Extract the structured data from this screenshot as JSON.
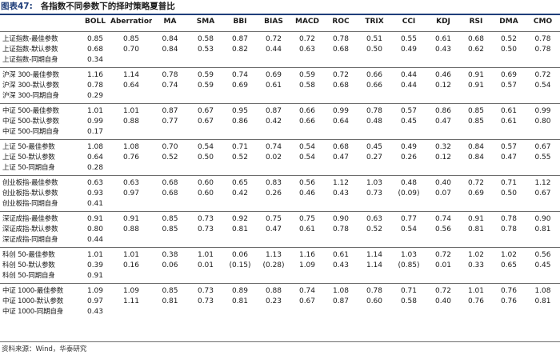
{
  "figure": {
    "label": "图表47:",
    "title": "各指数不同参数下的择时策略夏普比"
  },
  "table": {
    "columns": [
      "",
      "BOLL",
      "Aberration",
      "MA",
      "SMA",
      "BBI",
      "BIAS",
      "MACD",
      "ROC",
      "TRIX",
      "CCI",
      "KDJ",
      "RSI",
      "DMA",
      "CMO"
    ],
    "groups": [
      {
        "rows": [
          {
            "label": "上证指数-最佳参数",
            "values": [
              "0.85",
              "0.85",
              "0.84",
              "0.58",
              "0.87",
              "0.72",
              "0.72",
              "0.78",
              "0.51",
              "0.55",
              "0.61",
              "0.68",
              "0.52",
              "0.78"
            ]
          },
          {
            "label": "上证指数-默认参数",
            "values": [
              "0.68",
              "0.70",
              "0.84",
              "0.53",
              "0.82",
              "0.44",
              "0.63",
              "0.68",
              "0.50",
              "0.49",
              "0.43",
              "0.62",
              "0.50",
              "0.78"
            ]
          },
          {
            "label": "上证指数-同期自身",
            "values": [
              "0.34",
              "",
              "",
              "",
              "",
              "",
              "",
              "",
              "",
              "",
              "",
              "",
              "",
              ""
            ]
          }
        ]
      },
      {
        "rows": [
          {
            "label": "沪深 300-最佳参数",
            "values": [
              "1.16",
              "1.14",
              "0.78",
              "0.59",
              "0.74",
              "0.69",
              "0.59",
              "0.72",
              "0.66",
              "0.44",
              "0.46",
              "0.91",
              "0.69",
              "0.72"
            ]
          },
          {
            "label": "沪深 300-默认参数",
            "values": [
              "0.78",
              "0.64",
              "0.74",
              "0.59",
              "0.69",
              "0.61",
              "0.58",
              "0.68",
              "0.66",
              "0.44",
              "0.12",
              "0.91",
              "0.57",
              "0.54"
            ]
          },
          {
            "label": "沪深 300-同期自身",
            "values": [
              "0.29",
              "",
              "",
              "",
              "",
              "",
              "",
              "",
              "",
              "",
              "",
              "",
              "",
              ""
            ]
          }
        ]
      },
      {
        "rows": [
          {
            "label": "中证 500-最佳参数",
            "values": [
              "1.01",
              "1.01",
              "0.87",
              "0.67",
              "0.95",
              "0.87",
              "0.66",
              "0.99",
              "0.78",
              "0.57",
              "0.86",
              "0.85",
              "0.61",
              "0.99"
            ]
          },
          {
            "label": "中证 500-默认参数",
            "values": [
              "0.99",
              "0.88",
              "0.77",
              "0.67",
              "0.86",
              "0.42",
              "0.66",
              "0.64",
              "0.48",
              "0.45",
              "0.47",
              "0.85",
              "0.61",
              "0.80"
            ]
          },
          {
            "label": "中证 500-同期自身",
            "values": [
              "0.17",
              "",
              "",
              "",
              "",
              "",
              "",
              "",
              "",
              "",
              "",
              "",
              "",
              ""
            ]
          }
        ]
      },
      {
        "rows": [
          {
            "label": "上证 50-最佳参数",
            "values": [
              "1.08",
              "1.08",
              "0.70",
              "0.54",
              "0.71",
              "0.74",
              "0.54",
              "0.68",
              "0.45",
              "0.49",
              "0.32",
              "0.84",
              "0.57",
              "0.67"
            ]
          },
          {
            "label": "上证 50-默认参数",
            "values": [
              "0.64",
              "0.76",
              "0.52",
              "0.50",
              "0.52",
              "0.02",
              "0.54",
              "0.47",
              "0.27",
              "0.26",
              "0.12",
              "0.84",
              "0.47",
              "0.55"
            ]
          },
          {
            "label": "上证 50-同期自身",
            "values": [
              "0.28",
              "",
              "",
              "",
              "",
              "",
              "",
              "",
              "",
              "",
              "",
              "",
              "",
              ""
            ]
          }
        ]
      },
      {
        "rows": [
          {
            "label": "创业板指-最佳参数",
            "values": [
              "0.63",
              "0.63",
              "0.68",
              "0.60",
              "0.65",
              "0.83",
              "0.56",
              "1.12",
              "1.03",
              "0.48",
              "0.40",
              "0.72",
              "0.71",
              "1.12"
            ]
          },
          {
            "label": "创业板指-默认参数",
            "values": [
              "0.93",
              "0.97",
              "0.68",
              "0.60",
              "0.42",
              "0.26",
              "0.46",
              "0.43",
              "0.73",
              "(0.09)",
              "0.07",
              "0.69",
              "0.50",
              "0.67"
            ]
          },
          {
            "label": "创业板指-同期自身",
            "values": [
              "0.41",
              "",
              "",
              "",
              "",
              "",
              "",
              "",
              "",
              "",
              "",
              "",
              "",
              ""
            ]
          }
        ]
      },
      {
        "rows": [
          {
            "label": "深证成指-最佳参数",
            "values": [
              "0.91",
              "0.91",
              "0.85",
              "0.73",
              "0.92",
              "0.75",
              "0.75",
              "0.90",
              "0.63",
              "0.77",
              "0.74",
              "0.91",
              "0.78",
              "0.90"
            ]
          },
          {
            "label": "深证成指-默认参数",
            "values": [
              "0.80",
              "0.88",
              "0.85",
              "0.73",
              "0.81",
              "0.47",
              "0.61",
              "0.78",
              "0.52",
              "0.54",
              "0.56",
              "0.81",
              "0.78",
              "0.81"
            ]
          },
          {
            "label": "深证成指-同期自身",
            "values": [
              "0.44",
              "",
              "",
              "",
              "",
              "",
              "",
              "",
              "",
              "",
              "",
              "",
              "",
              ""
            ]
          }
        ]
      },
      {
        "rows": [
          {
            "label": "科创 50-最佳参数",
            "values": [
              "1.01",
              "1.01",
              "0.38",
              "1.01",
              "0.06",
              "1.13",
              "1.16",
              "0.61",
              "1.14",
              "1.03",
              "0.72",
              "1.02",
              "1.02",
              "0.56"
            ]
          },
          {
            "label": "科创 50-默认参数",
            "values": [
              "0.39",
              "0.16",
              "0.06",
              "0.01",
              "(0.15)",
              "(0.28)",
              "1.09",
              "0.43",
              "1.14",
              "(0.85)",
              "0.01",
              "0.33",
              "0.65",
              "0.45"
            ]
          },
          {
            "label": "科创 50-同期自身",
            "values": [
              "0.91",
              "",
              "",
              "",
              "",
              "",
              "",
              "",
              "",
              "",
              "",
              "",
              "",
              ""
            ]
          }
        ]
      },
      {
        "rows": [
          {
            "label": "中证 1000-最佳参数",
            "values": [
              "1.09",
              "1.09",
              "0.85",
              "0.73",
              "0.89",
              "0.88",
              "0.74",
              "1.08",
              "0.78",
              "0.71",
              "0.72",
              "1.01",
              "0.76",
              "1.08"
            ]
          },
          {
            "label": "中证 1000-默认参数",
            "values": [
              "0.97",
              "1.11",
              "0.81",
              "0.73",
              "0.81",
              "0.23",
              "0.67",
              "0.87",
              "0.60",
              "0.58",
              "0.40",
              "0.76",
              "0.76",
              "0.81"
            ]
          },
          {
            "label": "中证 1000-同期自身",
            "values": [
              "0.43",
              "",
              "",
              "",
              "",
              "",
              "",
              "",
              "",
              "",
              "",
              "",
              "",
              ""
            ]
          }
        ]
      }
    ]
  },
  "source": "资料来源：Wind，华泰研究"
}
